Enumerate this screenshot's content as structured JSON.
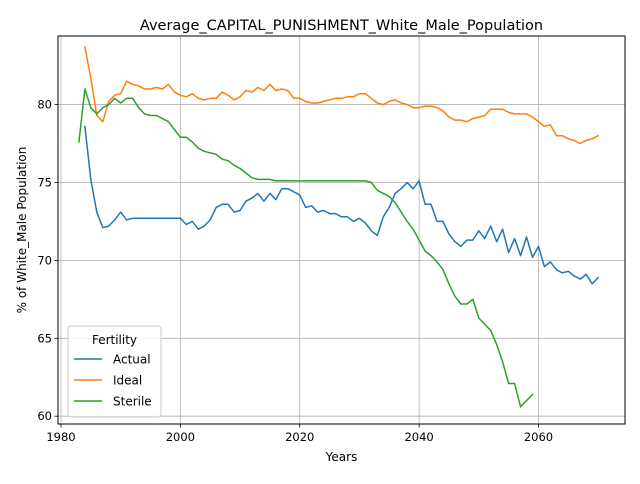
{
  "chart_data": {
    "type": "line",
    "title": "Average_CAPITAL_PUNISHMENT_White_Male_Population",
    "xlabel": "Years",
    "ylabel": "% of White_Male Population",
    "xlim": [
      1979.5,
      2074.5
    ],
    "ylim": [
      59.5,
      84.4
    ],
    "xticks": [
      1980,
      2000,
      2020,
      2040,
      2060
    ],
    "yticks": [
      60,
      65,
      70,
      75,
      80
    ],
    "grid": true,
    "legend": {
      "title": "Fertility",
      "position": "lower-left"
    },
    "series": [
      {
        "name": "Actual",
        "color": "#1f77b4",
        "x": [
          1984,
          1985,
          1986,
          1987,
          1988,
          1989,
          1990,
          1991,
          1992,
          1993,
          1994,
          1995,
          1996,
          1997,
          1998,
          1999,
          2000,
          2001,
          2002,
          2003,
          2004,
          2005,
          2006,
          2007,
          2008,
          2009,
          2010,
          2011,
          2012,
          2013,
          2014,
          2015,
          2016,
          2017,
          2018,
          2019,
          2020,
          2021,
          2022,
          2023,
          2024,
          2025,
          2026,
          2027,
          2028,
          2029,
          2030,
          2031,
          2032,
          2033,
          2034,
          2035,
          2036,
          2037,
          2038,
          2039,
          2040,
          2041,
          2042,
          2043,
          2044,
          2045,
          2046,
          2047,
          2048,
          2049,
          2050,
          2051,
          2052,
          2053,
          2054,
          2055,
          2056,
          2057,
          2058,
          2059,
          2060,
          2061,
          2062,
          2063,
          2064,
          2065,
          2066,
          2067,
          2068,
          2069,
          2070
        ],
        "values": [
          78.6,
          75.2,
          73.1,
          72.1,
          72.2,
          72.6,
          73.1,
          72.6,
          72.7,
          72.7,
          72.7,
          72.7,
          72.7,
          72.7,
          72.7,
          72.7,
          72.7,
          72.3,
          72.5,
          72.0,
          72.2,
          72.6,
          73.4,
          73.6,
          73.6,
          73.1,
          73.2,
          73.8,
          74.0,
          74.3,
          73.8,
          74.3,
          73.9,
          74.6,
          74.6,
          74.4,
          74.2,
          73.4,
          73.5,
          73.1,
          73.2,
          73.0,
          73.0,
          72.8,
          72.8,
          72.5,
          72.7,
          72.4,
          71.9,
          71.6,
          72.8,
          73.4,
          74.3,
          74.6,
          75.0,
          74.6,
          75.1,
          73.6,
          73.6,
          72.5,
          72.5,
          71.7,
          71.2,
          70.9,
          71.3,
          71.3,
          71.9,
          71.4,
          72.2,
          71.2,
          72.0,
          70.5,
          71.4,
          70.3,
          71.5,
          70.2,
          70.9,
          69.6,
          69.9,
          69.4,
          69.2,
          69.3,
          69.0,
          68.8,
          69.1,
          68.5,
          68.9
        ]
      },
      {
        "name": "Ideal",
        "color": "#ff7f0e",
        "x": [
          1984,
          1985,
          1986,
          1987,
          1988,
          1989,
          1990,
          1991,
          1992,
          1993,
          1994,
          1995,
          1996,
          1997,
          1998,
          1999,
          2000,
          2001,
          2002,
          2003,
          2004,
          2005,
          2006,
          2007,
          2008,
          2009,
          2010,
          2011,
          2012,
          2013,
          2014,
          2015,
          2016,
          2017,
          2018,
          2019,
          2020,
          2021,
          2022,
          2023,
          2024,
          2025,
          2026,
          2027,
          2028,
          2029,
          2030,
          2031,
          2032,
          2033,
          2034,
          2035,
          2036,
          2037,
          2038,
          2039,
          2040,
          2041,
          2042,
          2043,
          2044,
          2045,
          2046,
          2047,
          2048,
          2049,
          2050,
          2051,
          2052,
          2053,
          2054,
          2055,
          2056,
          2057,
          2058,
          2059,
          2060,
          2061,
          2062,
          2063,
          2064,
          2065,
          2066,
          2067,
          2068,
          2069,
          2070
        ],
        "values": [
          83.7,
          81.7,
          79.3,
          78.9,
          80.2,
          80.6,
          80.7,
          81.5,
          81.3,
          81.2,
          81.0,
          81.0,
          81.1,
          81.0,
          81.3,
          80.8,
          80.6,
          80.5,
          80.7,
          80.4,
          80.3,
          80.4,
          80.4,
          80.8,
          80.6,
          80.3,
          80.5,
          80.9,
          80.8,
          81.1,
          80.9,
          81.3,
          80.9,
          81.0,
          80.9,
          80.4,
          80.4,
          80.2,
          80.1,
          80.1,
          80.2,
          80.3,
          80.4,
          80.4,
          80.5,
          80.5,
          80.7,
          80.7,
          80.4,
          80.1,
          80.0,
          80.2,
          80.3,
          80.1,
          80.0,
          79.8,
          79.8,
          79.9,
          79.9,
          79.8,
          79.6,
          79.2,
          79.0,
          79.0,
          78.9,
          79.1,
          79.2,
          79.3,
          79.7,
          79.7,
          79.7,
          79.5,
          79.4,
          79.4,
          79.4,
          79.2,
          78.9,
          78.6,
          78.7,
          78.0,
          78.0,
          77.8,
          77.7,
          77.5,
          77.7,
          77.8,
          78.0
        ]
      },
      {
        "name": "Sterile",
        "color": "#2ca02c",
        "x": [
          1983,
          1984,
          1985,
          1986,
          1987,
          1988,
          1989,
          1990,
          1991,
          1992,
          1993,
          1994,
          1995,
          1996,
          1997,
          1998,
          1999,
          2000,
          2001,
          2002,
          2003,
          2004,
          2005,
          2006,
          2007,
          2008,
          2009,
          2010,
          2011,
          2012,
          2013,
          2014,
          2015,
          2016,
          2017,
          2018,
          2019,
          2020,
          2021,
          2022,
          2023,
          2024,
          2025,
          2026,
          2027,
          2028,
          2029,
          2030,
          2031,
          2032,
          2033,
          2034,
          2035,
          2036,
          2037,
          2038,
          2039,
          2040,
          2041,
          2042,
          2043,
          2044,
          2045,
          2046,
          2047,
          2048,
          2049,
          2050,
          2051,
          2052,
          2053,
          2054,
          2055,
          2056,
          2057,
          2058,
          2059
        ],
        "values": [
          77.6,
          81.0,
          79.8,
          79.4,
          79.8,
          80.0,
          80.4,
          80.1,
          80.4,
          80.4,
          79.8,
          79.4,
          79.3,
          79.3,
          79.1,
          78.9,
          78.4,
          77.9,
          77.9,
          77.6,
          77.2,
          77.0,
          76.9,
          76.8,
          76.5,
          76.4,
          76.1,
          75.9,
          75.6,
          75.3,
          75.2,
          75.2,
          75.2,
          75.1,
          75.1,
          75.1,
          75.1,
          75.1,
          75.1,
          75.1,
          75.1,
          75.1,
          75.1,
          75.1,
          75.1,
          75.1,
          75.1,
          75.1,
          75.1,
          75.0,
          74.5,
          74.3,
          74.1,
          73.7,
          73.1,
          72.5,
          72.0,
          71.3,
          70.6,
          70.3,
          69.9,
          69.4,
          68.5,
          67.7,
          67.2,
          67.2,
          67.5,
          66.3,
          65.9,
          65.5,
          64.6,
          63.5,
          62.1,
          62.1,
          60.6,
          61.0,
          61.4
        ]
      }
    ]
  }
}
